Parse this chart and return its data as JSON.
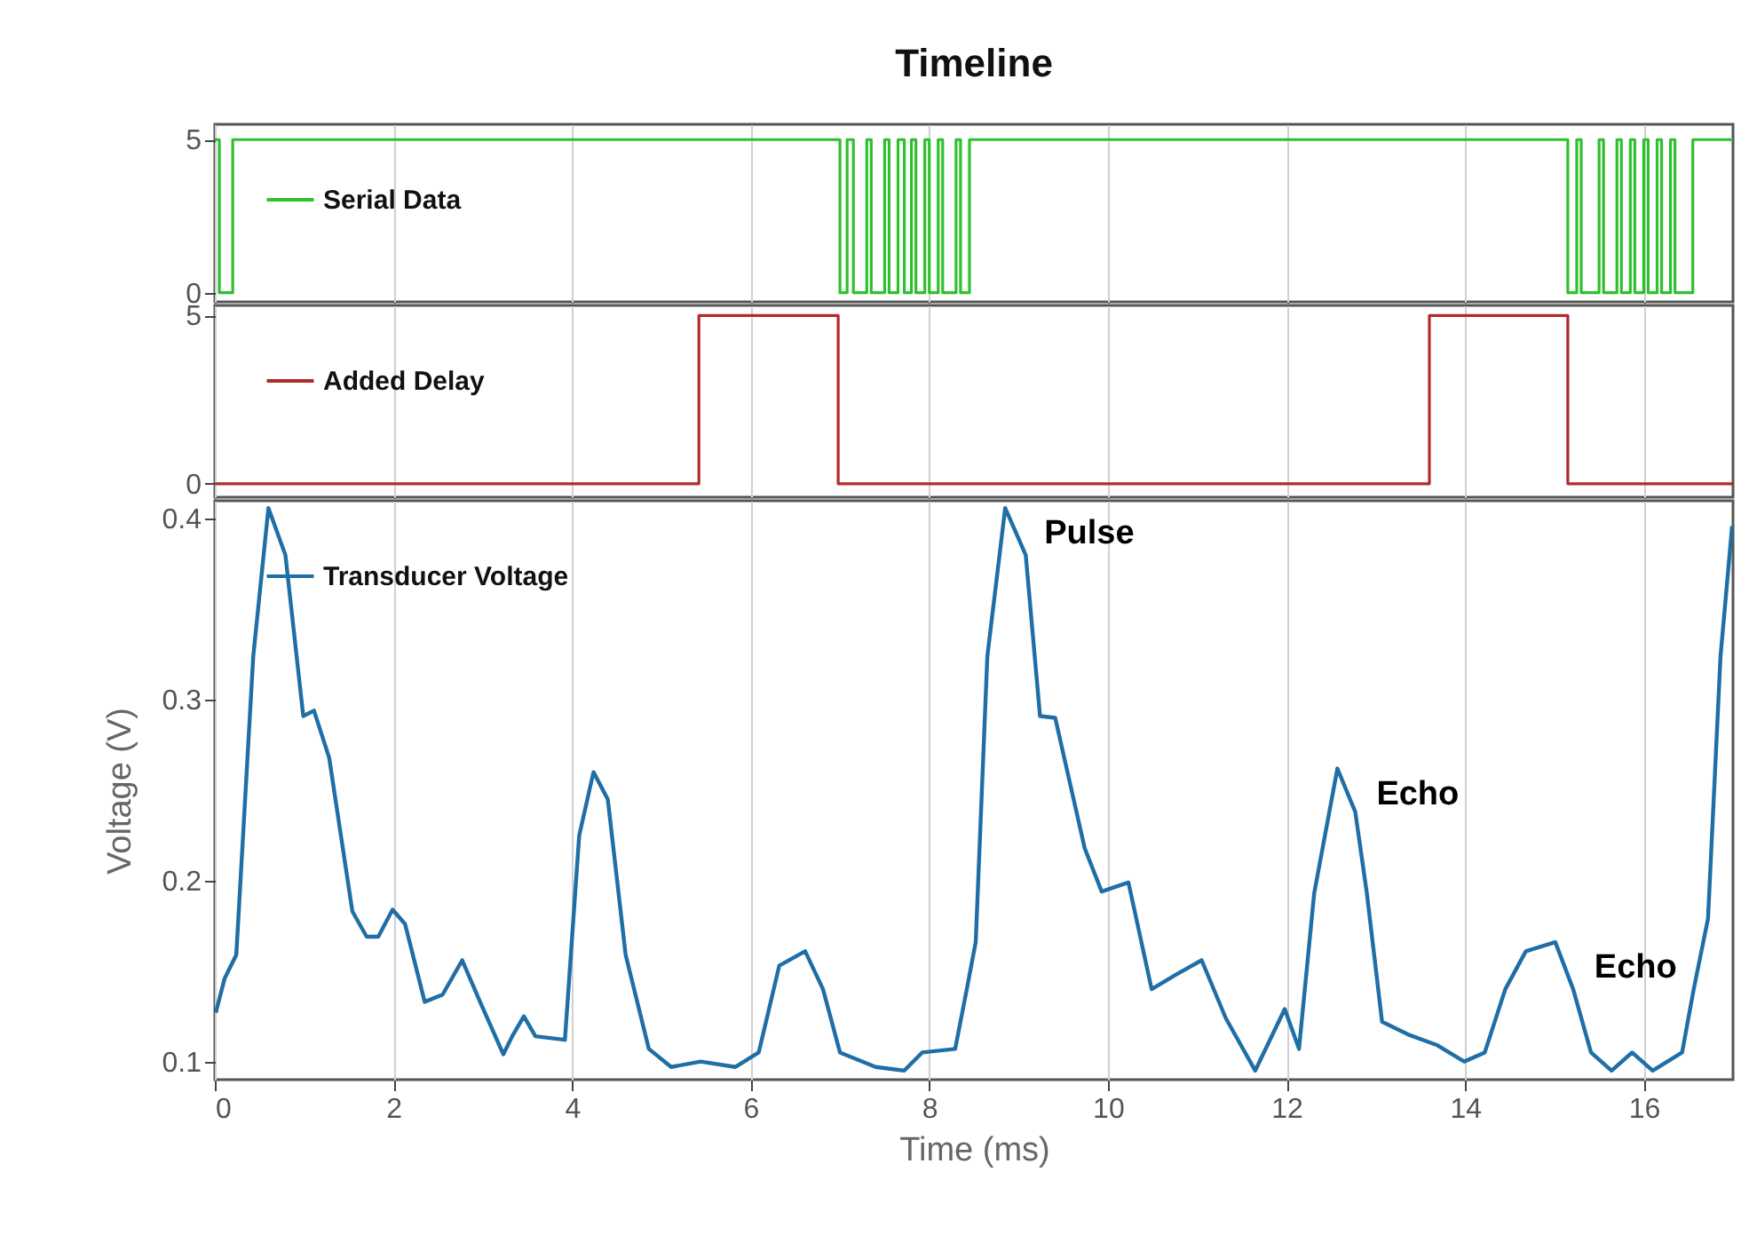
{
  "chart_data": [
    {
      "type": "step",
      "title": "Timeline",
      "xlim": [
        0,
        17
      ],
      "xticks": [
        0,
        2,
        4,
        6,
        8,
        10,
        12,
        14,
        16
      ],
      "ylim": [
        -0.3,
        5.5
      ],
      "yticks": [
        0,
        5
      ],
      "grid": "x",
      "legend": "top left",
      "tick_labels": "y",
      "series": [
        {
          "name": "Serial Data",
          "color": "#2ec02e",
          "x": [
            0,
            0.05,
            0.2,
            7.0,
            7.08,
            7.15,
            7.3,
            7.35,
            7.5,
            7.55,
            7.65,
            7.72,
            7.8,
            7.85,
            7.95,
            8.0,
            8.1,
            8.15,
            8.3,
            8.35,
            8.45,
            15.15,
            15.25,
            15.3,
            15.5,
            15.55,
            15.7,
            15.75,
            15.85,
            15.9,
            16.0,
            16.05,
            16.15,
            16.2,
            16.3,
            16.35,
            16.55,
            17
          ],
          "values": [
            5,
            0,
            5,
            0,
            5,
            0,
            5,
            0,
            5,
            0,
            5,
            0,
            5,
            0,
            5,
            0,
            5,
            0,
            5,
            0,
            5,
            0,
            5,
            0,
            5,
            0,
            5,
            0,
            5,
            0,
            5,
            0,
            5,
            0,
            5,
            0,
            5,
            5
          ]
        }
      ]
    },
    {
      "type": "step",
      "xlim": [
        0,
        17
      ],
      "xticks": [
        0,
        2,
        4,
        6,
        8,
        10,
        12,
        14,
        16
      ],
      "ylim": [
        -0.4,
        5.3
      ],
      "yticks": [
        0,
        5
      ],
      "grid": "x",
      "legend": "top left",
      "tick_labels": "y",
      "series": [
        {
          "name": "Added Delay",
          "color": "#b22a2a",
          "x": [
            0,
            5.42,
            6.98,
            13.6,
            15.15,
            17
          ],
          "values": [
            0,
            5,
            0,
            5,
            0,
            0
          ]
        }
      ]
    },
    {
      "type": "line",
      "xlabel": "Time (ms)",
      "ylabel": "Voltage (V)",
      "xlim": [
        0,
        17
      ],
      "xticks": [
        0,
        2,
        4,
        6,
        8,
        10,
        12,
        14,
        16
      ],
      "ylim": [
        0.09,
        0.41
      ],
      "yticks": [
        0.1,
        0.2,
        0.3,
        0.4
      ],
      "grid": "x",
      "legend": "top left",
      "annotations": [
        {
          "text": "Pulse",
          "x": 8.85,
          "y": 0.406
        },
        {
          "text": "Echo",
          "x": 12.57,
          "y": 0.262
        },
        {
          "text": "Echo",
          "x": 15.01,
          "y": 0.166
        }
      ],
      "series": [
        {
          "name": "Transducer Voltage",
          "color": "#1f6ea6",
          "x": [
            0.01,
            0.11,
            0.24,
            0.43,
            0.6,
            0.79,
            0.99,
            1.11,
            1.28,
            1.54,
            1.7,
            1.83,
            1.99,
            2.13,
            2.35,
            2.55,
            2.77,
            2.97,
            3.23,
            3.33,
            3.46,
            3.59,
            3.92,
            4.08,
            4.24,
            4.4,
            4.6,
            4.86,
            5.11,
            5.44,
            5.83,
            6.09,
            6.32,
            6.61,
            6.81,
            7.0,
            7.4,
            7.72,
            7.92,
            8.29,
            8.42,
            8.52,
            8.65,
            8.85,
            9.08,
            9.24,
            9.41,
            9.74,
            9.93,
            10.23,
            10.49,
            10.76,
            11.05,
            11.32,
            11.65,
            11.98,
            12.14,
            12.31,
            12.57,
            12.77,
            12.9,
            13.07,
            13.36,
            13.69,
            13.99,
            14.22,
            14.45,
            14.68,
            15.01,
            15.21,
            15.41,
            15.64,
            15.87,
            16.1,
            16.43,
            16.56,
            16.72,
            16.86,
            16.99
          ],
          "values": [
            0.127,
            0.146,
            0.159,
            0.324,
            0.406,
            0.38,
            0.291,
            0.294,
            0.268,
            0.183,
            0.169,
            0.169,
            0.184,
            0.176,
            0.133,
            0.137,
            0.156,
            0.133,
            0.104,
            0.114,
            0.125,
            0.114,
            0.112,
            0.225,
            0.26,
            0.245,
            0.159,
            0.107,
            0.097,
            0.1,
            0.097,
            0.105,
            0.153,
            0.161,
            0.14,
            0.105,
            0.097,
            0.095,
            0.105,
            0.107,
            0.14,
            0.166,
            0.324,
            0.406,
            0.38,
            0.291,
            0.29,
            0.218,
            0.194,
            0.199,
            0.14,
            0.148,
            0.156,
            0.124,
            0.095,
            0.129,
            0.107,
            0.193,
            0.262,
            0.238,
            0.193,
            0.122,
            0.115,
            0.109,
            0.1,
            0.105,
            0.14,
            0.161,
            0.166,
            0.14,
            0.105,
            0.095,
            0.105,
            0.095,
            0.105,
            0.14,
            0.179,
            0.324,
            0.396
          ]
        }
      ]
    }
  ]
}
